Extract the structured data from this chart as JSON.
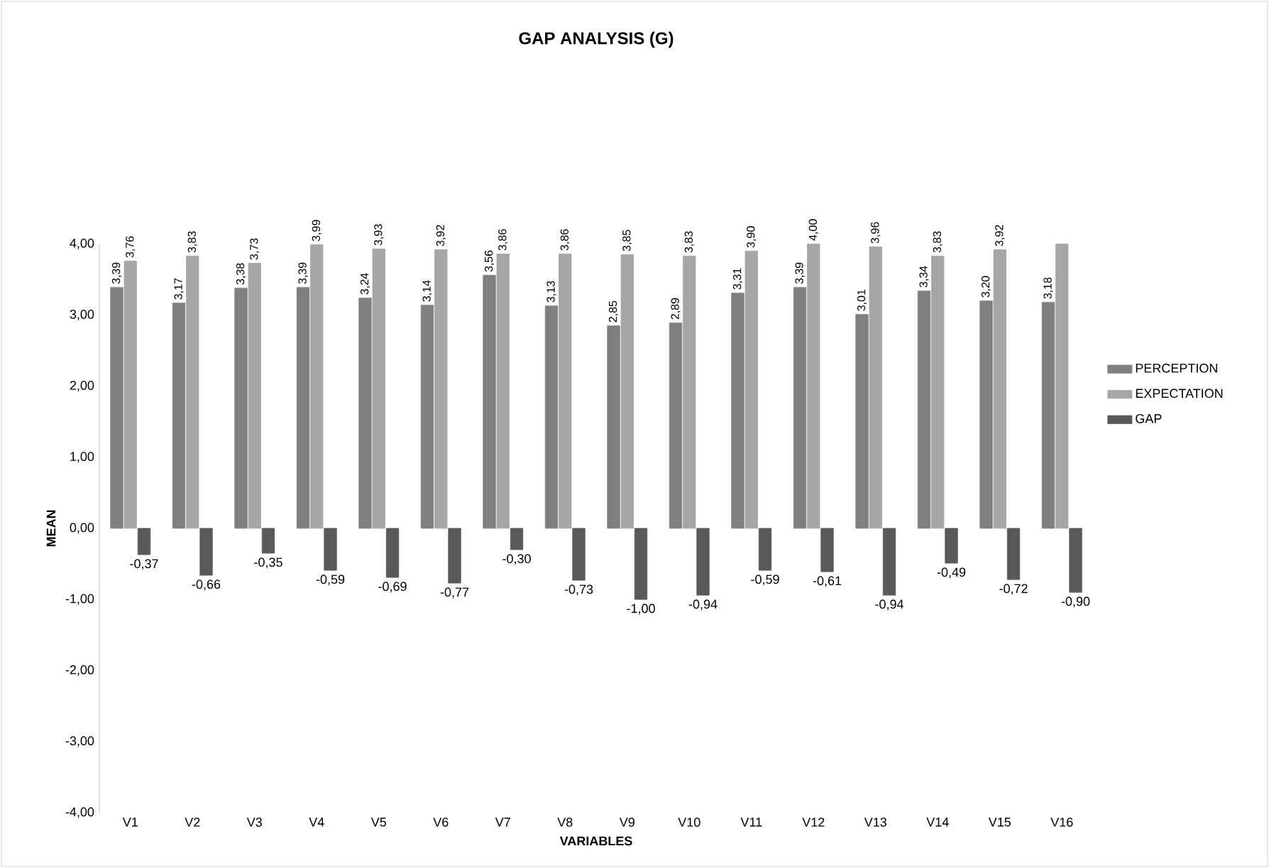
{
  "chart_data": {
    "type": "bar",
    "title": "GAP ANALYSIS (G)",
    "xlabel": "VARIABLES",
    "ylabel": "MEAN",
    "categories": [
      "V1",
      "V2",
      "V3",
      "V4",
      "V5",
      "V6",
      "V7",
      "V8",
      "V9",
      "V10",
      "V11",
      "V12",
      "V13",
      "V14",
      "V15",
      "V16"
    ],
    "series": [
      {
        "name": "PERCEPTION",
        "color": "#7f7f7f",
        "values": [
          3.39,
          3.17,
          3.38,
          3.39,
          3.24,
          3.14,
          3.56,
          3.13,
          2.85,
          2.89,
          3.31,
          3.39,
          3.01,
          3.34,
          3.2,
          3.18
        ],
        "value_labels": [
          "3,39",
          "3,17",
          "3,38",
          "3,39",
          "3,24",
          "3,14",
          "3,56",
          "3,13",
          "2,85",
          "2,89",
          "3,31",
          "3,39",
          "3,01",
          "3,34",
          "3,20",
          "3,18"
        ]
      },
      {
        "name": "EXPECTATION",
        "color": "#a6a6a6",
        "values": [
          3.76,
          3.83,
          3.73,
          3.99,
          3.93,
          3.92,
          3.86,
          3.86,
          3.85,
          3.83,
          3.9,
          4.0,
          3.96,
          3.83,
          3.92,
          4.0
        ],
        "value_labels": [
          "3,76",
          "3,83",
          "3,73",
          "3,99",
          "3,93",
          "3,92",
          "3,86",
          "3,86",
          "3,85",
          "3,83",
          "3,90",
          "4,00",
          "3,96",
          "3,83",
          "3,92",
          null
        ]
      },
      {
        "name": "GAP",
        "color": "#595959",
        "values": [
          -0.37,
          -0.66,
          -0.35,
          -0.59,
          -0.69,
          -0.77,
          -0.3,
          -0.73,
          -1.0,
          -0.94,
          -0.59,
          -0.61,
          -0.94,
          -0.49,
          -0.72,
          -0.9
        ],
        "value_labels": [
          "-0,37",
          "-0,66",
          "-0,35",
          "-0,59",
          "-0,69",
          "-0,77",
          "-0,30",
          "-0,73",
          "-1,00",
          "-0,94",
          "-0,59",
          "-0,61",
          "-0,94",
          "-0,49",
          "-0,72",
          "-0,90"
        ]
      }
    ],
    "ylim": [
      -4,
      4
    ],
    "yticks": [
      {
        "value": -4,
        "label": "-4,00"
      },
      {
        "value": -3,
        "label": "-3,00"
      },
      {
        "value": -2,
        "label": "-2,00"
      },
      {
        "value": -1,
        "label": "-1,00"
      },
      {
        "value": 0,
        "label": "0,00"
      },
      {
        "value": 1,
        "label": "1,00"
      },
      {
        "value": 2,
        "label": "2,00"
      },
      {
        "value": 3,
        "label": "3,00"
      },
      {
        "value": 4,
        "label": "4,00"
      }
    ],
    "legend": "right"
  }
}
